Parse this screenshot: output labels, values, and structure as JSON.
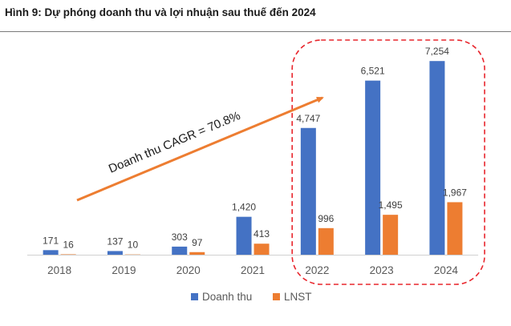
{
  "title": "Hình 9: Dự phóng doanh thu và lợi nhuận sau thuế đến 2024",
  "chart_data": {
    "type": "bar",
    "categories": [
      "2018",
      "2019",
      "2020",
      "2021",
      "2022",
      "2023",
      "2024"
    ],
    "series": [
      {
        "name": "Doanh thu",
        "values": [
          171,
          137,
          303,
          1420,
          4747,
          6521,
          7254
        ],
        "labels": [
          "171",
          "137",
          "303",
          "1,420",
          "4,747",
          "6,521",
          "7,254"
        ],
        "color": "#4472C4"
      },
      {
        "name": "LNST",
        "values": [
          16,
          10,
          97,
          413,
          996,
          1495,
          1967
        ],
        "labels": [
          "16",
          "10",
          "97",
          "413",
          "996",
          "1,495",
          "1,967"
        ],
        "color": "#ED7D31"
      }
    ],
    "ylim": [
      0,
      8100
    ],
    "grid": false,
    "legend": "bottom",
    "annotation": {
      "text": "Doanh thu CAGR = 70.8%",
      "color": "#ED7D31"
    },
    "highlight": {
      "categories": [
        "2022",
        "2023",
        "2024"
      ],
      "style": "dashed",
      "color": "#E8262D"
    }
  }
}
